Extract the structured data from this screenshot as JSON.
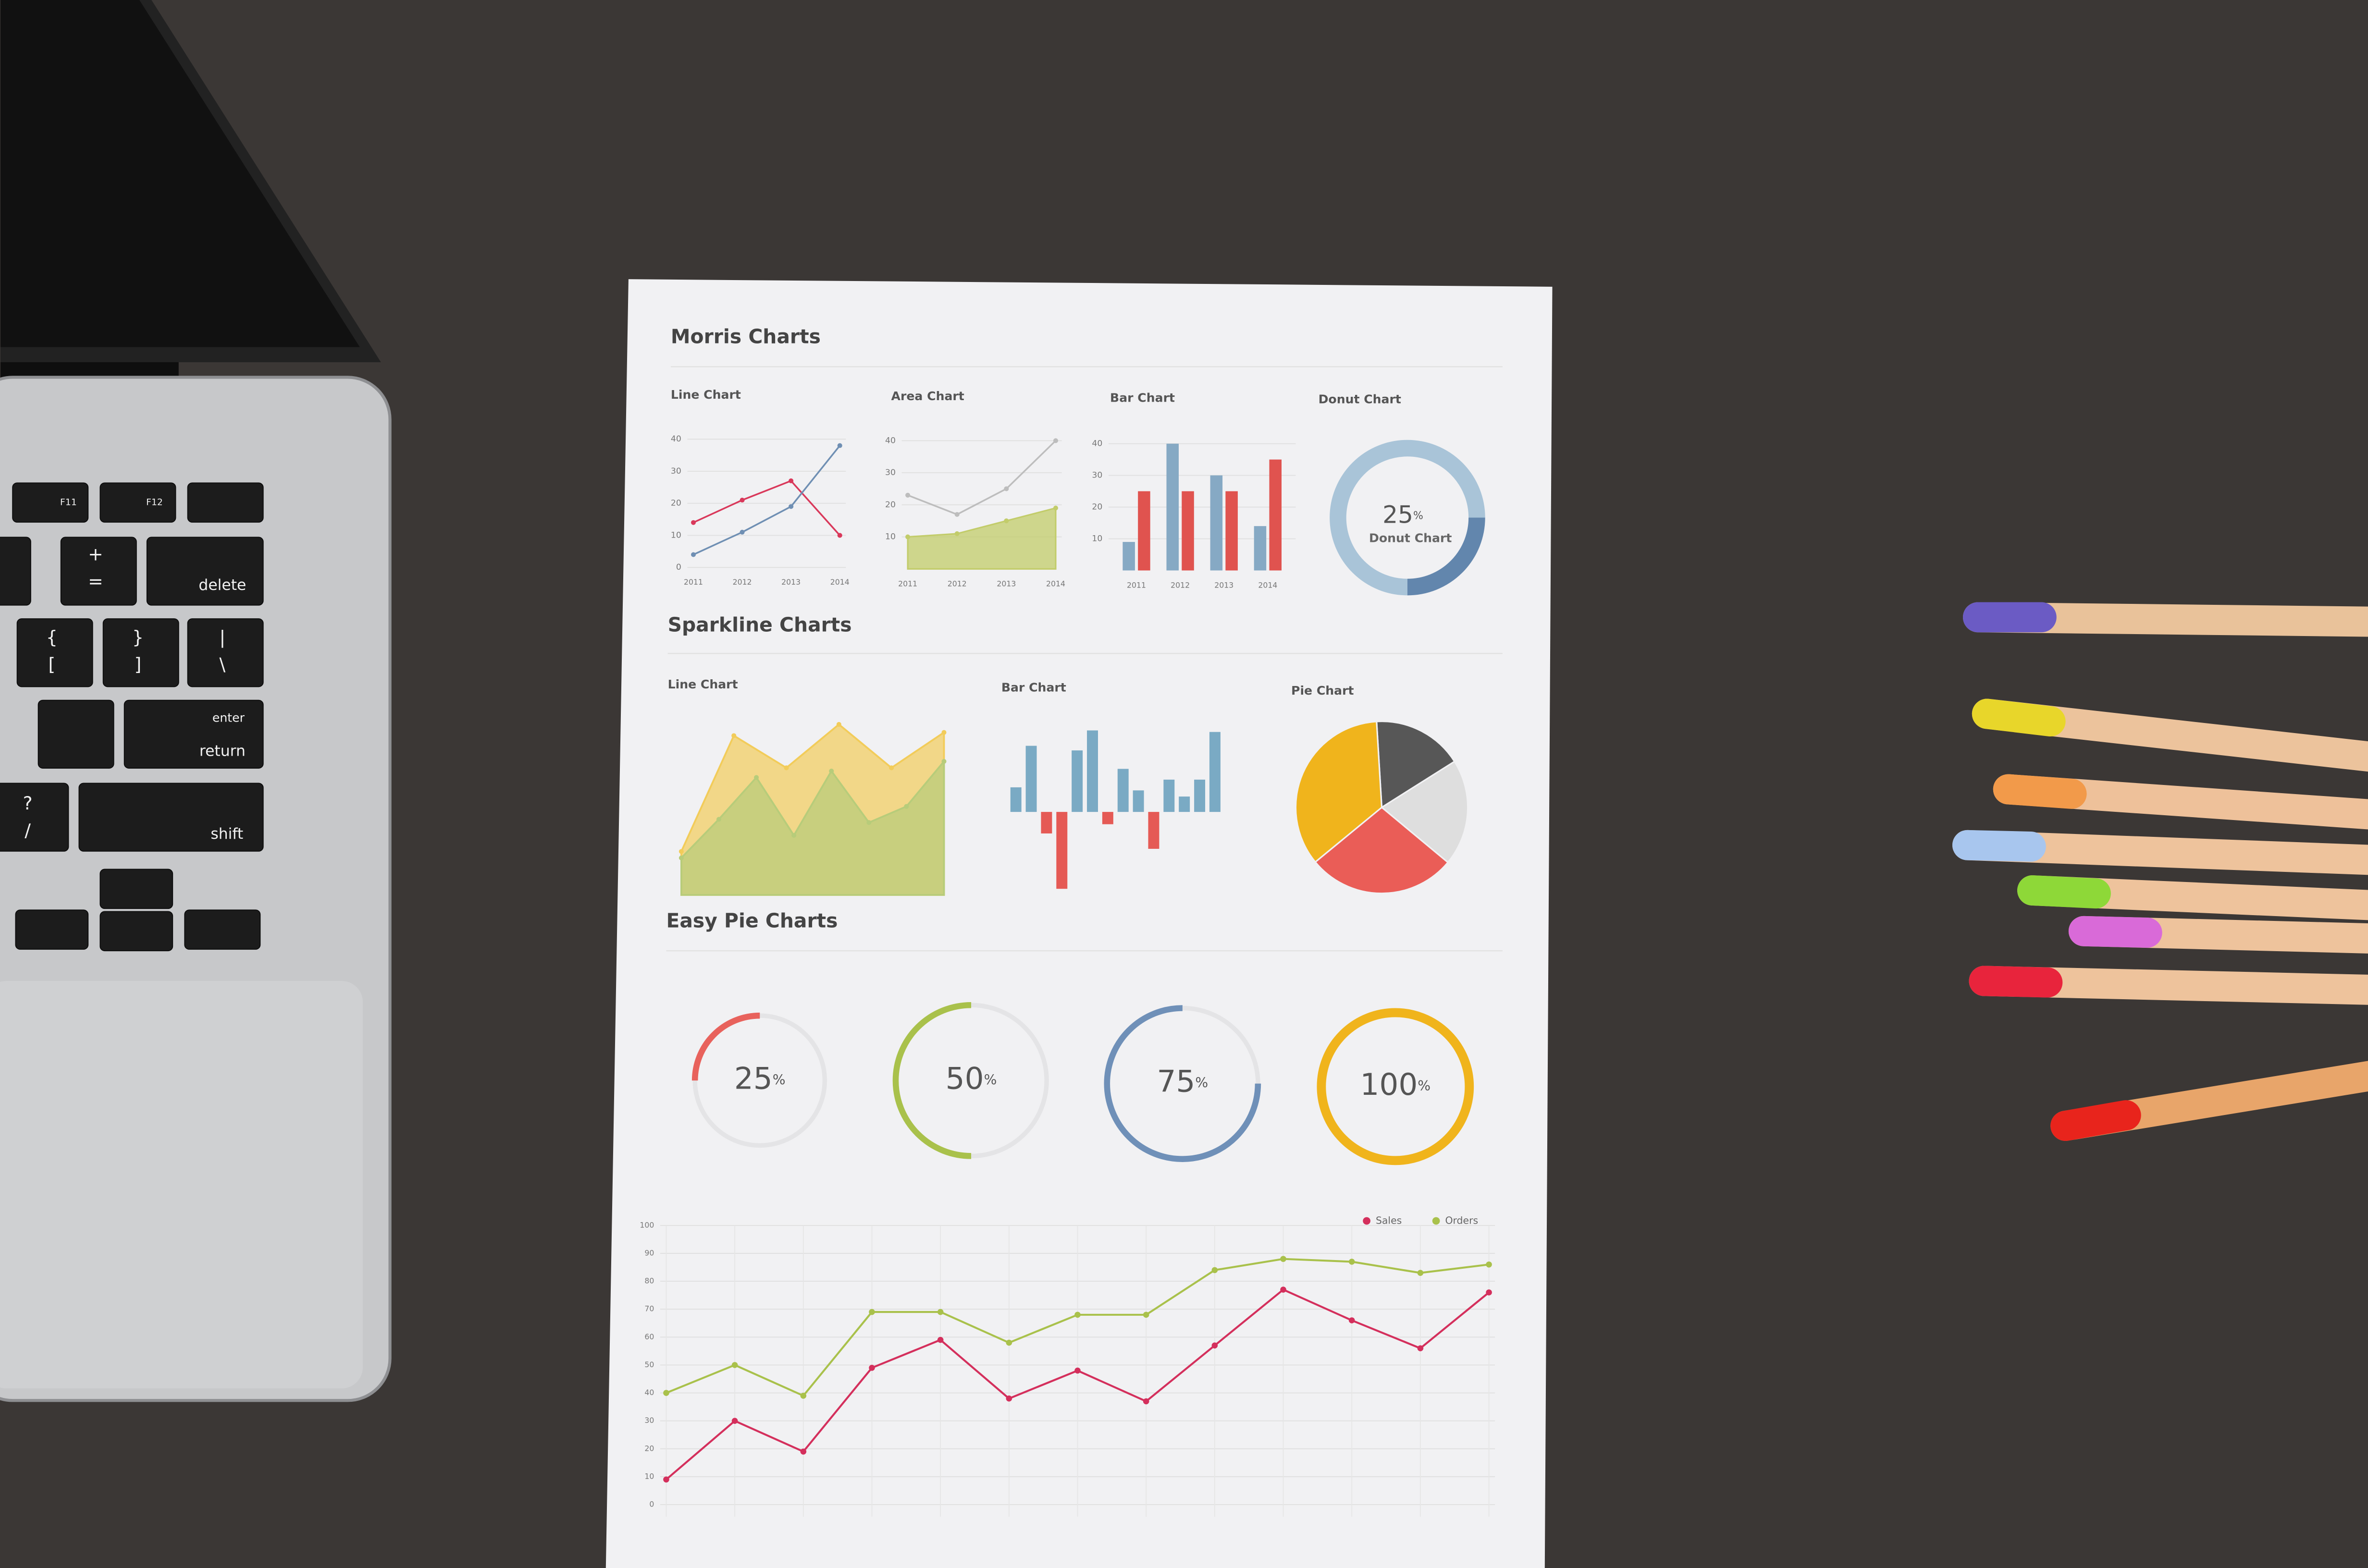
{
  "headings": {
    "morris": "Morris Charts",
    "sparkline": "Sparkline Charts",
    "easy_pie": "Easy Pie Charts"
  },
  "laptop_keys": [
    "F11",
    "F12",
    "delete",
    "enter",
    "return",
    "shift",
    "+",
    "=",
    "{",
    "[",
    "}",
    "]",
    "|",
    "\\",
    "?",
    "/"
  ],
  "chart_data": [
    {
      "type": "line",
      "title": "Line Chart",
      "categories": [
        "2011",
        "2012",
        "2013",
        "2014"
      ],
      "ylim": [
        0,
        40
      ],
      "yticks": [
        0,
        10,
        20,
        30,
        40
      ],
      "grid": true,
      "series": [
        {
          "color": "#d9385a",
          "values": [
            14,
            21,
            27,
            10
          ]
        },
        {
          "color": "#6f8fb3",
          "values": [
            4,
            11,
            19,
            38
          ]
        }
      ]
    },
    {
      "type": "area",
      "title": "Area Chart",
      "categories": [
        "2011",
        "2012",
        "2013",
        "2014"
      ],
      "ylim": [
        0,
        40
      ],
      "yticks": [
        10,
        20,
        30,
        40
      ],
      "grid": true,
      "series": [
        {
          "color": "#c2cc6a",
          "style": "area",
          "values": [
            10,
            11,
            15,
            19
          ]
        },
        {
          "color": "#bdbdbd",
          "style": "line",
          "values": [
            23,
            17,
            25,
            40
          ]
        }
      ]
    },
    {
      "type": "bar",
      "title": "Bar Chart",
      "categories": [
        "2011",
        "2012",
        "2013",
        "2014"
      ],
      "ylim": [
        0,
        40
      ],
      "yticks": [
        10,
        20,
        30,
        40
      ],
      "grid": true,
      "series": [
        {
          "color": "#86a9c4",
          "values": [
            9,
            40,
            30,
            14
          ]
        },
        {
          "color": "#e0534f",
          "values": [
            25,
            25,
            25,
            35
          ]
        }
      ]
    },
    {
      "type": "donut",
      "title": "Donut Chart",
      "values": [
        75,
        25
      ],
      "colors": [
        "#a9c4d8",
        "#6286ad"
      ],
      "center_value": 25,
      "center_unit": "%",
      "center_label": "Donut Chart"
    },
    {
      "type": "sparkline-area",
      "title": "Line Chart",
      "series": [
        {
          "color": "#f2cc5a",
          "values": [
            27,
            99,
            79,
            106,
            79,
            101
          ]
        },
        {
          "color": "#b7cc7a",
          "values": [
            23,
            47,
            73,
            37,
            77,
            45,
            55,
            83
          ]
        }
      ]
    },
    {
      "type": "sparkline-bar",
      "title": "Bar Chart",
      "colors": [
        "#7aaac4",
        "#e55a55"
      ],
      "values": [
        16,
        43,
        -14,
        -50,
        40,
        53,
        -8,
        28,
        14,
        -24,
        21,
        10,
        21,
        52
      ]
    },
    {
      "type": "pie",
      "title": "Pie Chart",
      "values": [
        17,
        20,
        28,
        35
      ],
      "colors": [
        "#575757",
        "#dedede",
        "#ea5d57",
        "#f0b41c"
      ]
    },
    {
      "type": "easy-pie",
      "value": 25,
      "unit": "%",
      "color": "#e8625c"
    },
    {
      "type": "easy-pie",
      "value": 50,
      "unit": "%",
      "color": "#a9c14b"
    },
    {
      "type": "easy-pie",
      "value": 75,
      "unit": "%",
      "color": "#6f90b8"
    },
    {
      "type": "easy-pie",
      "value": 100,
      "unit": "%",
      "color": "#f0b41c"
    },
    {
      "type": "line",
      "categories": [
        null,
        null,
        null,
        null,
        null,
        null,
        null,
        null,
        null,
        null,
        null,
        null,
        null
      ],
      "ylim": [
        0,
        100
      ],
      "yticks": [
        0,
        10,
        20,
        30,
        40,
        50,
        60,
        70,
        80,
        90,
        100
      ],
      "grid": true,
      "legend": "top-right",
      "series": [
        {
          "name": "Sales",
          "color": "#d42f5c",
          "values": [
            9,
            30,
            19,
            49,
            59,
            38,
            48,
            37,
            57,
            77,
            66,
            56,
            76
          ]
        },
        {
          "name": "Orders",
          "color": "#a9c14b",
          "values": [
            40,
            50,
            39,
            69,
            69,
            58,
            68,
            68,
            84,
            88,
            87,
            83,
            86
          ]
        }
      ]
    }
  ]
}
